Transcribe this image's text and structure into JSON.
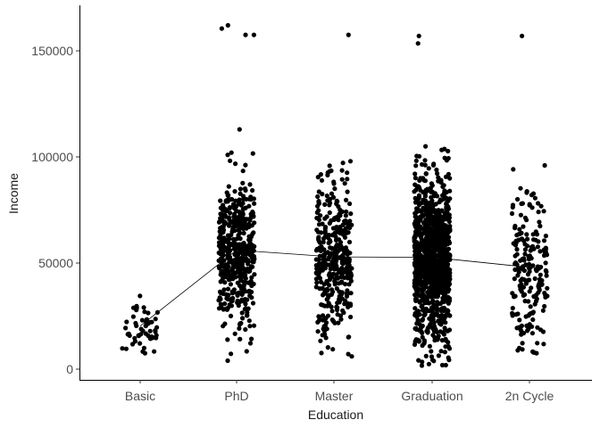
{
  "chart_data": {
    "type": "scatter",
    "xlabel": "Education",
    "ylabel": "Income",
    "categories": [
      "Basic",
      "PhD",
      "Master",
      "Graduation",
      "2n Cycle"
    ],
    "ylim": [
      -6000,
      170000
    ],
    "yticks": [
      0,
      50000,
      100000,
      150000
    ],
    "ytick_labels": [
      "0",
      "50000",
      "100000",
      "150000"
    ],
    "grid": false,
    "legend": "none",
    "point_color": "#000000",
    "mean_line_color": "#000000",
    "mean_line": [
      {
        "category": "Basic",
        "value": 20300
      },
      {
        "category": "PhD",
        "value": 56100
      },
      {
        "category": "Master",
        "value": 52900
      },
      {
        "category": "Graduation",
        "value": 52700
      },
      {
        "category": "2n Cycle",
        "value": 48000
      }
    ],
    "groups": [
      {
        "category": "Basic",
        "n": 54,
        "min": 7500,
        "max": 34500,
        "center": 20300,
        "spread": 6500,
        "outliers": []
      },
      {
        "category": "PhD",
        "n": 480,
        "min": 4000,
        "max": 102000,
        "center": 56100,
        "spread": 17000,
        "outliers": [
          113000,
          157500,
          160500,
          157500,
          162000
        ]
      },
      {
        "category": "Master",
        "n": 365,
        "min": 6000,
        "max": 98000,
        "center": 52900,
        "spread": 18000,
        "outliers": [
          157500
        ]
      },
      {
        "category": "Graduation",
        "n": 1110,
        "min": 1700,
        "max": 105000,
        "center": 52700,
        "spread": 19000,
        "outliers": [
          157000,
          153500
        ]
      },
      {
        "category": "2n Cycle",
        "n": 200,
        "min": 7500,
        "max": 96000,
        "center": 48000,
        "spread": 19500,
        "outliers": [
          157000
        ]
      }
    ]
  }
}
